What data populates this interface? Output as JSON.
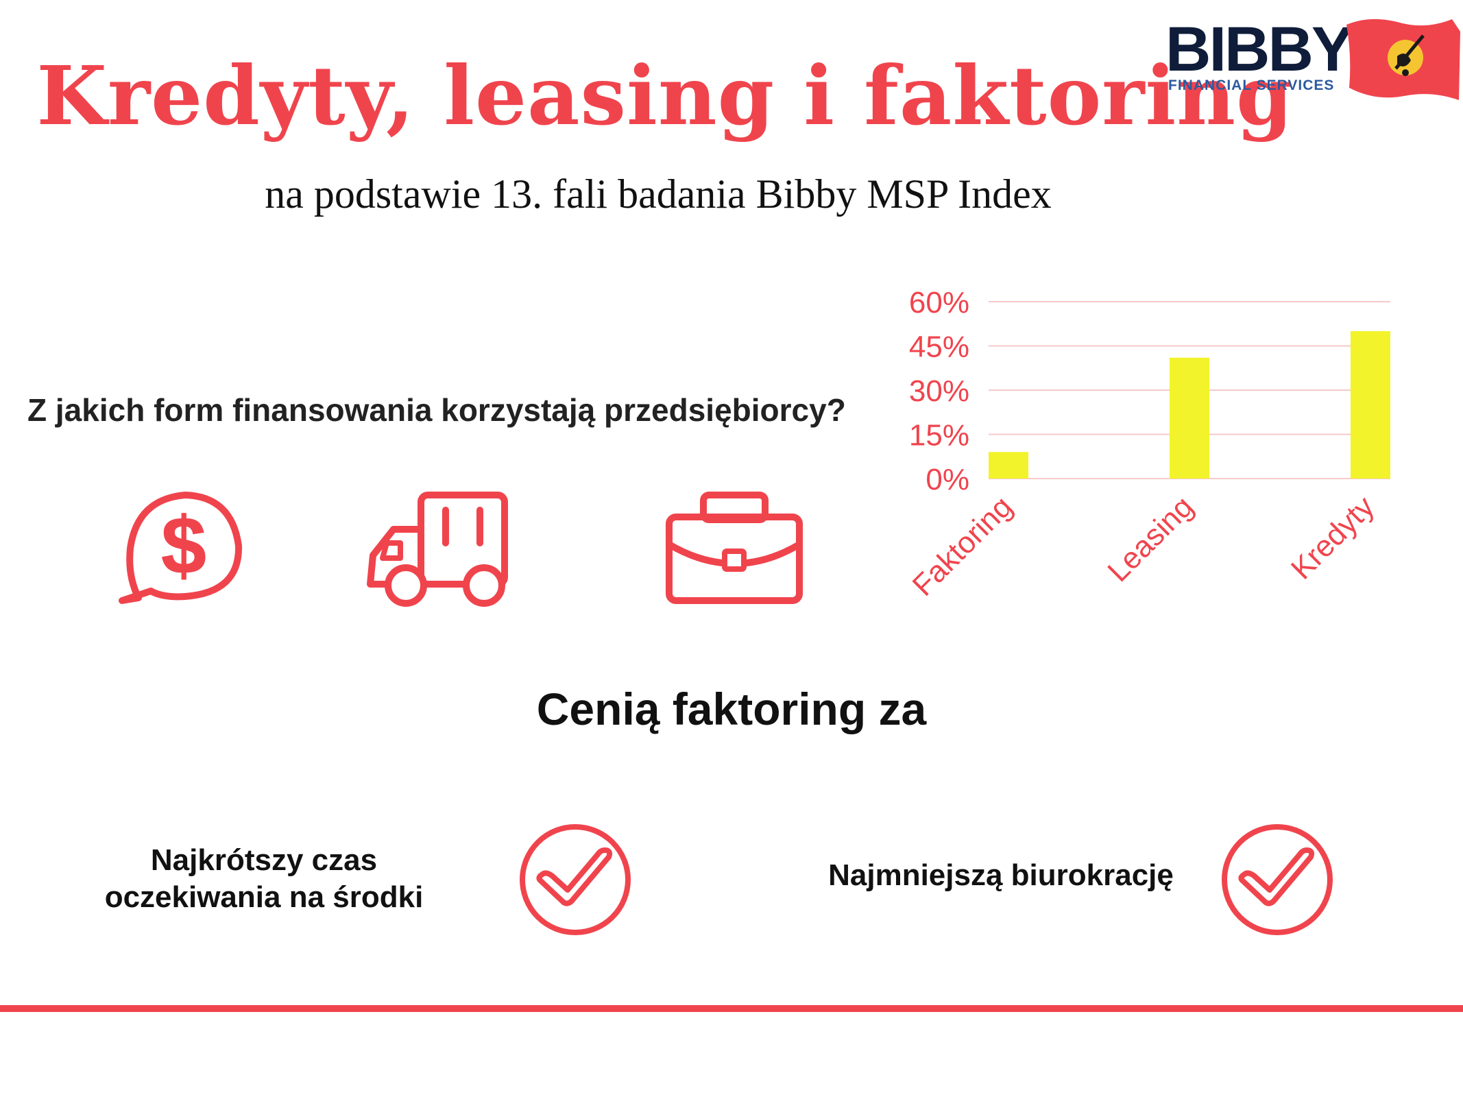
{
  "header": {
    "title": "Kredyty, leasing i faktoring",
    "subtitle": "na podstawie 13. fali badania Bibby MSP Index"
  },
  "logo": {
    "name": "BIBBY",
    "tagline": "FINANCIAL SERVICES"
  },
  "question": "Z jakich form finansowania korzystają przedsiębiorcy?",
  "icons": [
    "dollar-speech-bubble-icon",
    "truck-icon",
    "briefcase-icon"
  ],
  "chart_data": {
    "type": "bar",
    "categories": [
      "Faktoring",
      "Leasing",
      "Kredyty"
    ],
    "values": [
      9,
      41,
      50
    ],
    "ylim": [
      0,
      60
    ],
    "yticks": [
      0,
      15,
      30,
      45,
      60
    ],
    "ytick_labels": [
      "0%",
      "15%",
      "30%",
      "45%",
      "60%"
    ],
    "grid": true,
    "title": "",
    "xlabel": "",
    "ylabel": ""
  },
  "section_title": "Cenią faktoring za",
  "benefits": [
    {
      "line1": "Najkrótszy czas",
      "line2": "oczekiwania na środki"
    },
    {
      "text": "Najmniejszą biurokrację"
    }
  ],
  "colors": {
    "accent": "#f0444d",
    "bar": "#f2f32a",
    "logo_navy": "#0f1d3a",
    "logo_blue": "#2b5aa0",
    "gridline": "#f6c9cb"
  }
}
